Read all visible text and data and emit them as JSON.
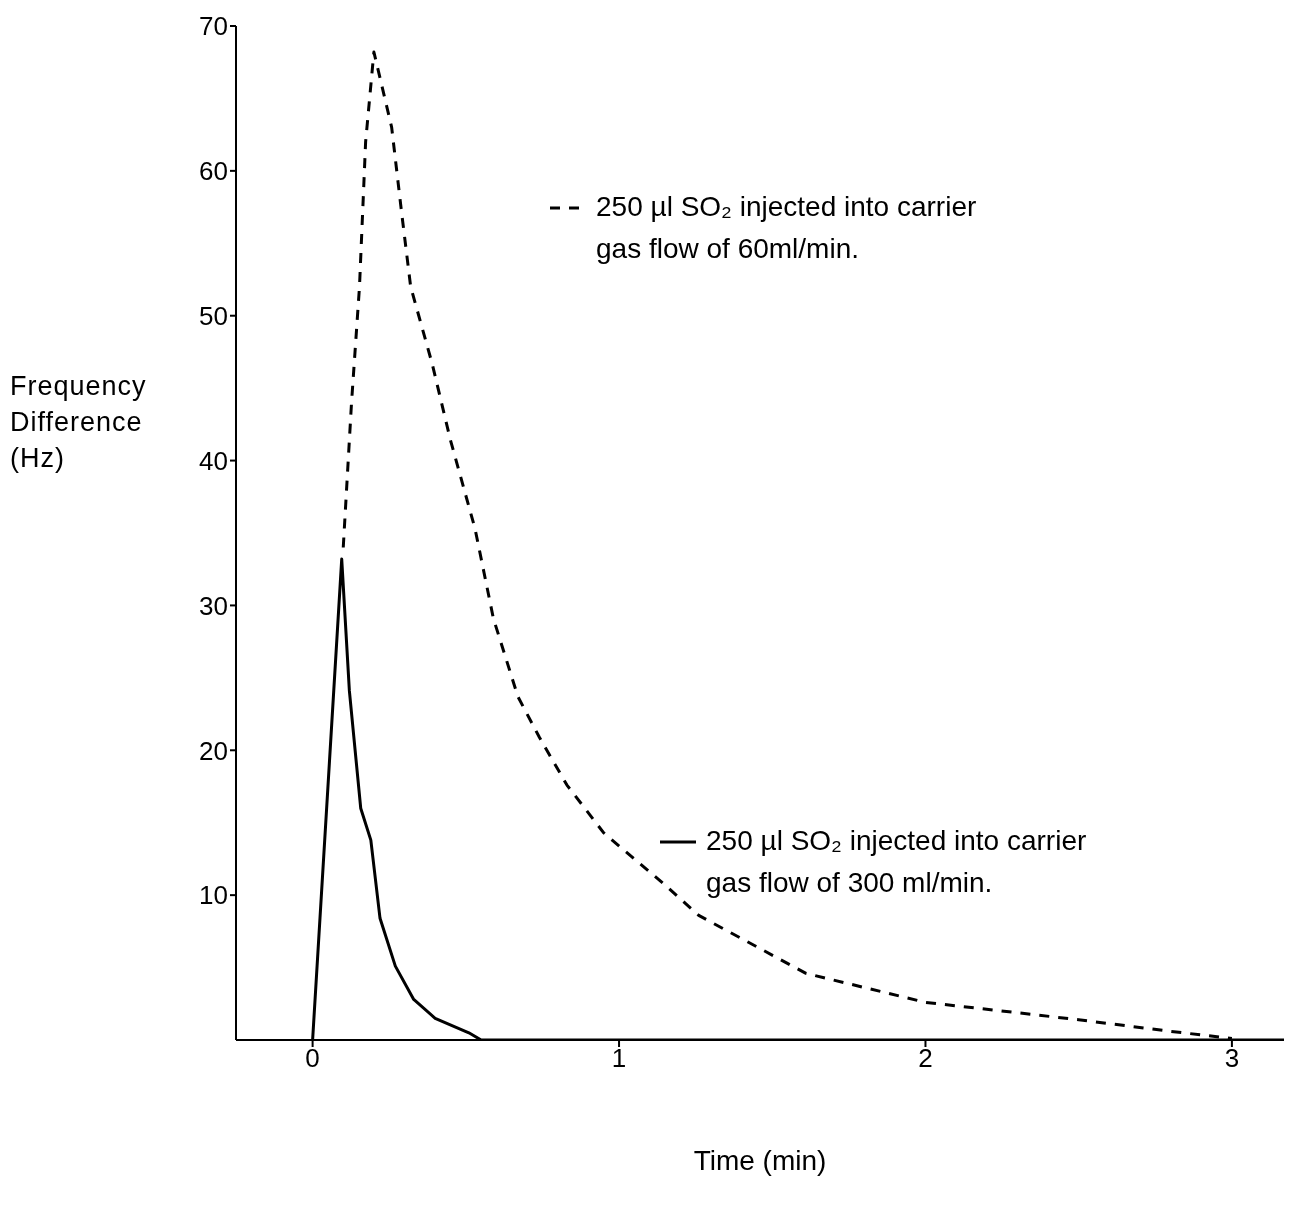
{
  "chart_data": {
    "type": "line",
    "xlabel": "Time (min)",
    "ylabel": "Frequency Difference (Hz)",
    "xlim": [
      -0.25,
      3.17
    ],
    "xticks": [
      0,
      1,
      2,
      3
    ],
    "ylim": [
      0,
      70
    ],
    "yticks": [
      10,
      20,
      30,
      40,
      50,
      60,
      70
    ],
    "marker": "none",
    "legend": "right",
    "series": [
      {
        "name": "250 µl SO₂ injected into carrier gas flow of 60ml/min.",
        "color": "#000000",
        "line_style": "dashed",
        "x": [
          0.1,
          0.127,
          0.153,
          0.173,
          0.2,
          0.258,
          0.29,
          0.32,
          0.39,
          0.45,
          0.53,
          0.59,
          0.67,
          0.74,
          0.83,
          0.95,
          1.15,
          1.26,
          1.61,
          2.0,
          2.5,
          2.8,
          3.0
        ],
        "values": [
          34,
          44,
          52,
          62,
          68.2,
          63,
          57.2,
          52,
          46.7,
          41.4,
          35.3,
          29.1,
          23.7,
          20.9,
          17.6,
          14.3,
          10.7,
          8.6,
          4.6,
          2.6,
          1.4,
          0.6,
          0.1
        ]
      },
      {
        "name": "250 µl SO₂ injected into carrier gas flow of 300 ml/min.",
        "color": "#000000",
        "line_style": "solid",
        "x": [
          0,
          0.095,
          0.12,
          0.157,
          0.19,
          0.22,
          0.27,
          0.33,
          0.4,
          0.51,
          0.55,
          3.17
        ],
        "values": [
          0,
          33.2,
          24.1,
          16,
          13.8,
          8.4,
          5.1,
          2.8,
          1.5,
          0.5,
          0,
          0
        ]
      }
    ]
  }
}
